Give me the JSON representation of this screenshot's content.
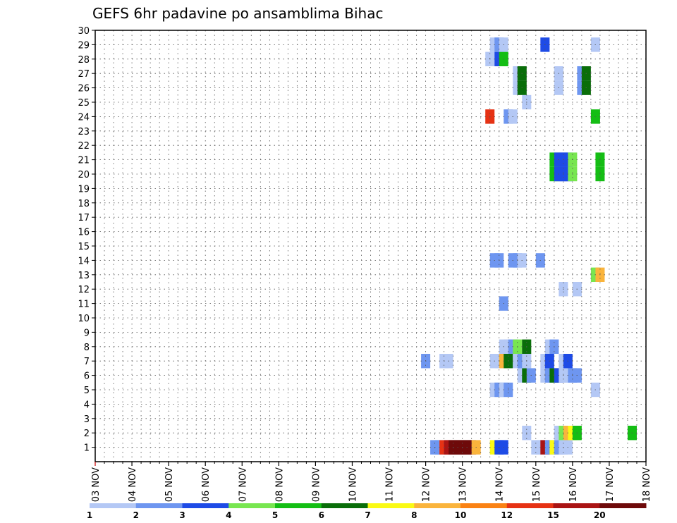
{
  "chart_data": {
    "type": "heatmap",
    "title": "GEFS 6hr padavine po ansamblima Bihac",
    "xlabel": "",
    "ylabel": "",
    "x_ticks": [
      "03 NOV",
      "04 NOV",
      "05 NOV",
      "06 NOV",
      "07 NOV",
      "08 NOV",
      "09 NOV",
      "10 NOV",
      "11 NOV",
      "12 NOV",
      "13 NOV",
      "14 NOV",
      "15 NOV",
      "16 NOV",
      "17 NOV",
      "18 NOV"
    ],
    "y_ticks": [
      "1",
      "2",
      "3",
      "4",
      "5",
      "6",
      "7",
      "8",
      "9",
      "10",
      "11",
      "12",
      "13",
      "14",
      "15",
      "16",
      "17",
      "18",
      "19",
      "20",
      "21",
      "22",
      "23",
      "24",
      "25",
      "26",
      "27",
      "28",
      "29",
      "30"
    ],
    "x_range_days": [
      0,
      15
    ],
    "y_range": [
      0,
      30
    ],
    "grid": true,
    "legend_labels": [
      "1",
      "2",
      "3",
      "4",
      "5",
      "6",
      "7",
      "8",
      "10",
      "12",
      "15",
      "20"
    ],
    "legend_colors": [
      "#b4c8f5",
      "#6e96f0",
      "#1e4be6",
      "#78e650",
      "#14be14",
      "#0a6e0a",
      "#fafa14",
      "#fab43c",
      "#fa8214",
      "#e63214",
      "#aa1414",
      "#6e0a0a"
    ],
    "cells": [
      {
        "member": 1,
        "t": [
          [
            9.25,
            1
          ],
          [
            9.375,
            1
          ],
          [
            9.5,
            9
          ],
          [
            9.625,
            10
          ],
          [
            9.75,
            11
          ],
          [
            9.875,
            11
          ],
          [
            10,
            11
          ],
          [
            10.125,
            11
          ],
          [
            10.25,
            11
          ],
          [
            10.375,
            7
          ],
          [
            10.875,
            6
          ],
          [
            11,
            2
          ],
          [
            11.125,
            2
          ],
          [
            12,
            0
          ],
          [
            12.125,
            0
          ],
          [
            12.25,
            10
          ],
          [
            12.375,
            1
          ],
          [
            12.5,
            6
          ],
          [
            12.625,
            1
          ],
          [
            12.75,
            0
          ],
          [
            12.875,
            0
          ]
        ]
      },
      {
        "member": 2,
        "t": [
          [
            11.75,
            0
          ],
          [
            12.625,
            0
          ],
          [
            12.75,
            3
          ],
          [
            12.875,
            7
          ],
          [
            13,
            6
          ],
          [
            13.125,
            4
          ],
          [
            14.625,
            4
          ]
        ]
      },
      {
        "member": 5,
        "t": [
          [
            10.875,
            0
          ],
          [
            11,
            1
          ],
          [
            11.125,
            0
          ],
          [
            11.25,
            1
          ],
          [
            13.625,
            0
          ]
        ]
      },
      {
        "member": 6,
        "t": [
          [
            11.625,
            0
          ],
          [
            11.75,
            5
          ],
          [
            11.875,
            1
          ],
          [
            12.25,
            0
          ],
          [
            12.375,
            1
          ],
          [
            12.5,
            5
          ],
          [
            12.625,
            2
          ],
          [
            12.75,
            0
          ],
          [
            12.875,
            0
          ],
          [
            13,
            1
          ],
          [
            13.125,
            1
          ]
        ]
      },
      {
        "member": 7,
        "t": [
          [
            9,
            1
          ],
          [
            9.5,
            0
          ],
          [
            9.625,
            0
          ],
          [
            10.875,
            0
          ],
          [
            11,
            0
          ],
          [
            11.125,
            7
          ],
          [
            11.25,
            5
          ],
          [
            11.5,
            0
          ],
          [
            11.625,
            1
          ],
          [
            11.75,
            0
          ],
          [
            12.25,
            0
          ],
          [
            12.375,
            2
          ],
          [
            12.75,
            0
          ],
          [
            12.875,
            2
          ]
        ]
      },
      {
        "member": 8,
        "t": [
          [
            11.125,
            0
          ],
          [
            11.25,
            0
          ],
          [
            11.375,
            1
          ],
          [
            11.5,
            3
          ],
          [
            11.75,
            5
          ],
          [
            12.375,
            0
          ],
          [
            12.5,
            1
          ]
        ]
      },
      {
        "member": 11,
        "t": [
          [
            11.125,
            1
          ]
        ]
      },
      {
        "member": 12,
        "t": [
          [
            12.75,
            0
          ],
          [
            13.125,
            0
          ]
        ]
      },
      {
        "member": 13,
        "t": [
          [
            13.625,
            3
          ],
          [
            13.75,
            7
          ]
        ]
      },
      {
        "member": 14,
        "t": [
          [
            10.875,
            1
          ],
          [
            11,
            1
          ],
          [
            11.375,
            1
          ],
          [
            11.5,
            1
          ],
          [
            11.625,
            0
          ],
          [
            12.125,
            1
          ]
        ]
      },
      {
        "member": 20,
        "t": [
          [
            12.5,
            4
          ],
          [
            12.625,
            2
          ],
          [
            12.75,
            2
          ],
          [
            12.875,
            2
          ],
          [
            13,
            3
          ],
          [
            13.75,
            4
          ]
        ]
      },
      {
        "member": 21,
        "t": [
          [
            12.5,
            4
          ],
          [
            12.625,
            2
          ],
          [
            12.75,
            2
          ],
          [
            12.875,
            2
          ],
          [
            13,
            3
          ],
          [
            13.75,
            4
          ]
        ]
      },
      {
        "member": 24,
        "t": [
          [
            10.75,
            9
          ],
          [
            11.25,
            1
          ],
          [
            11.375,
            0
          ],
          [
            13.625,
            4
          ]
        ]
      },
      {
        "member": 25,
        "t": [
          [
            11.75,
            0
          ]
        ]
      },
      {
        "member": 26,
        "t": [
          [
            11.5,
            0
          ],
          [
            11.625,
            5
          ],
          [
            12.625,
            0
          ],
          [
            13.25,
            1
          ],
          [
            13.375,
            5
          ]
        ]
      },
      {
        "member": 27,
        "t": [
          [
            11.5,
            0
          ],
          [
            11.625,
            5
          ],
          [
            12.625,
            0
          ],
          [
            13.25,
            1
          ],
          [
            13.375,
            5
          ]
        ]
      },
      {
        "member": 28,
        "t": [
          [
            10.75,
            0
          ],
          [
            11,
            2
          ],
          [
            11.125,
            4
          ]
        ]
      },
      {
        "member": 29,
        "t": [
          [
            10.875,
            0
          ],
          [
            11,
            1
          ],
          [
            11.125,
            0
          ],
          [
            12.25,
            2
          ],
          [
            13.625,
            0
          ]
        ]
      }
    ]
  }
}
